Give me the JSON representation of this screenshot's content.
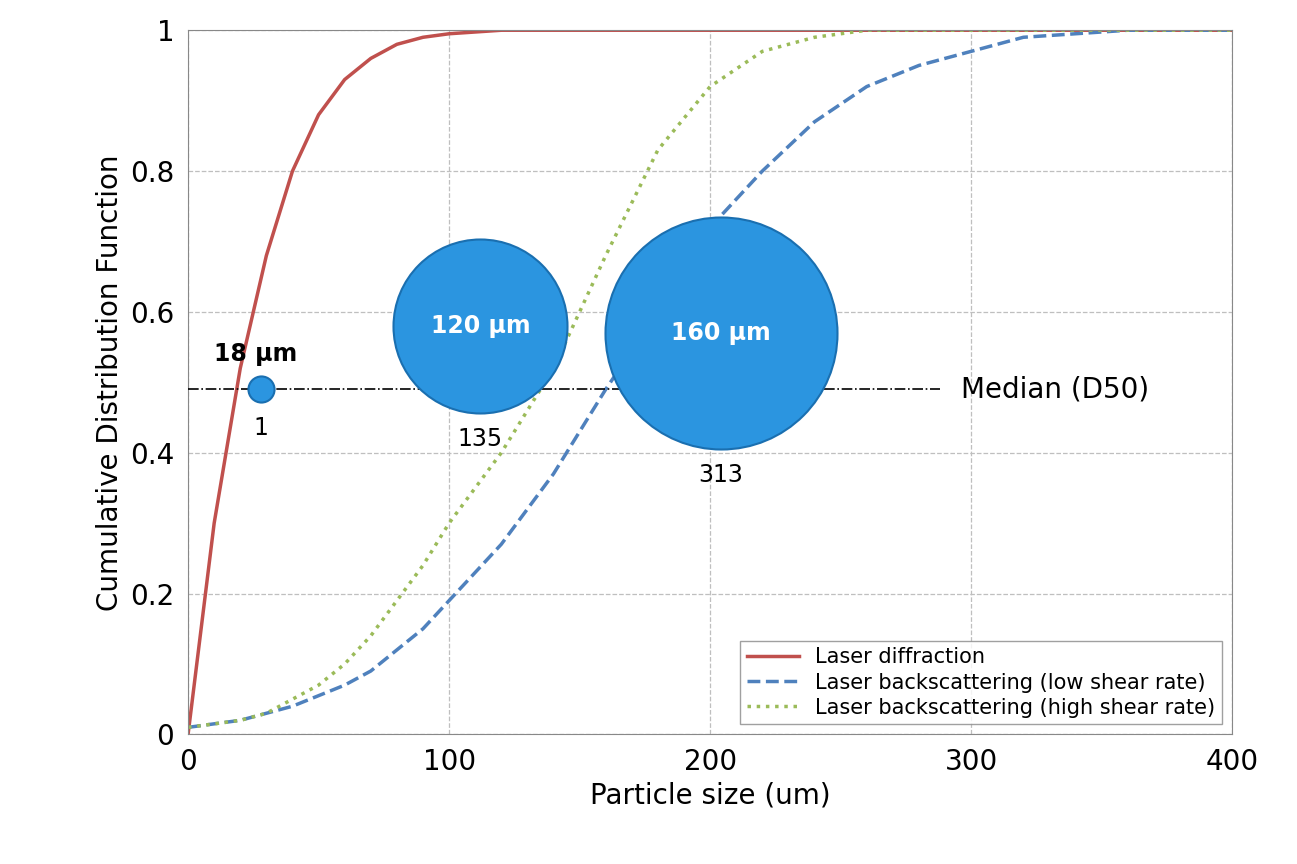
{
  "chart_data": {
    "type": "line",
    "x_label": "Particle size (um)",
    "y_label": "Cumulative Distribution Function",
    "x": [
      0,
      10,
      20,
      30,
      40,
      50,
      60,
      70,
      80,
      90,
      100,
      120,
      140,
      160,
      180,
      200,
      220,
      240,
      260,
      280,
      300,
      320,
      340,
      360,
      380,
      400
    ],
    "series": [
      {
        "name": "Laser diffraction",
        "color": "#c0504d",
        "line_style": "solid",
        "values": [
          0.0,
          0.3,
          0.52,
          0.68,
          0.8,
          0.88,
          0.93,
          0.96,
          0.98,
          0.99,
          0.995,
          1.0,
          1.0,
          1.0,
          1.0,
          1.0,
          1.0,
          1.0,
          1.0,
          1.0,
          1.0,
          1.0,
          1.0,
          1.0,
          1.0,
          1.0
        ]
      },
      {
        "name": "Laser backscattering (low shear rate)",
        "color": "#4f81bd",
        "line_style": "dashed",
        "values": [
          0.01,
          0.015,
          0.02,
          0.03,
          0.04,
          0.055,
          0.07,
          0.09,
          0.12,
          0.15,
          0.19,
          0.27,
          0.37,
          0.49,
          0.6,
          0.72,
          0.8,
          0.87,
          0.92,
          0.95,
          0.97,
          0.99,
          0.995,
          1.0,
          1.0,
          1.0
        ]
      },
      {
        "name": "Laser backscattering (high shear rate)",
        "color": "#9bbb59",
        "line_style": "dotted",
        "values": [
          0.01,
          0.015,
          0.02,
          0.03,
          0.05,
          0.07,
          0.1,
          0.14,
          0.19,
          0.24,
          0.3,
          0.4,
          0.52,
          0.68,
          0.83,
          0.92,
          0.97,
          0.99,
          1.0,
          1.0,
          1.0,
          1.0,
          1.0,
          1.0,
          1.0,
          1.0
        ]
      }
    ],
    "xlim": [
      0,
      400
    ],
    "xticks": [
      0,
      100,
      200,
      300,
      400
    ],
    "ylim": [
      0,
      1
    ],
    "yticks": [
      0,
      0.2,
      0.4,
      0.6,
      0.8,
      1
    ],
    "grid": true,
    "legend": "lower right",
    "median": {
      "label": "Median (D50)",
      "y": 0.49
    },
    "aggregates": [
      {
        "diameter_um": 18,
        "label": "18 µm",
        "count": 1
      },
      {
        "diameter_um": 120,
        "label": "120 µm",
        "count": 135
      },
      {
        "diameter_um": 160,
        "label": "160 µm",
        "count": 313
      }
    ]
  }
}
